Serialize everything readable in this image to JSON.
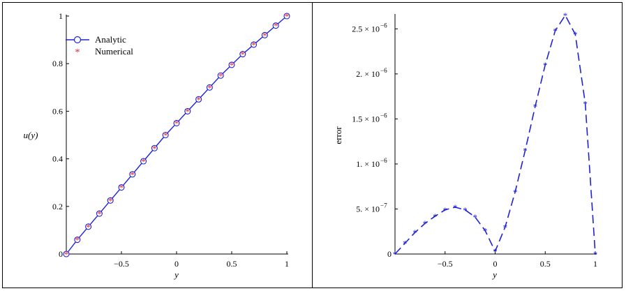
{
  "chart_data": [
    {
      "type": "line",
      "xlabel": "y",
      "ylabel": "u(y)",
      "xlim": [
        -1,
        1
      ],
      "ylim": [
        0,
        1
      ],
      "xticks": [
        "−0.5",
        "0",
        "0.5",
        "1"
      ],
      "yticks": [
        "0",
        "0.2",
        "0.4",
        "0.6",
        "0.8",
        "1"
      ],
      "legend_position": "top-left",
      "series": [
        {
          "name": "Analytic",
          "style": "solid line with circle markers",
          "color": "#1e22d6",
          "x": [
            -1,
            -0.9,
            -0.8,
            -0.7,
            -0.6,
            -0.5,
            -0.4,
            -0.3,
            -0.2,
            -0.1,
            0,
            0.1,
            0.2,
            0.3,
            0.4,
            0.5,
            0.6,
            0.7,
            0.8,
            0.9,
            1
          ],
          "y": [
            0,
            0.06,
            0.115,
            0.17,
            0.225,
            0.28,
            0.335,
            0.39,
            0.445,
            0.5,
            0.55,
            0.6,
            0.65,
            0.7,
            0.75,
            0.795,
            0.84,
            0.88,
            0.92,
            0.96,
            1
          ]
        },
        {
          "name": "Numerical",
          "style": "star markers",
          "color": "#e0202a",
          "x": [
            -1,
            -0.9,
            -0.8,
            -0.7,
            -0.6,
            -0.5,
            -0.4,
            -0.3,
            -0.2,
            -0.1,
            0,
            0.1,
            0.2,
            0.3,
            0.4,
            0.5,
            0.6,
            0.7,
            0.8,
            0.9,
            1
          ],
          "y": [
            0,
            0.06,
            0.115,
            0.17,
            0.225,
            0.28,
            0.335,
            0.39,
            0.445,
            0.5,
            0.55,
            0.6,
            0.65,
            0.7,
            0.75,
            0.795,
            0.84,
            0.88,
            0.92,
            0.96,
            1
          ]
        }
      ]
    },
    {
      "type": "line",
      "xlabel": "y",
      "ylabel": "error",
      "xlim": [
        -1,
        1
      ],
      "ylim": [
        0,
        2.65e-06
      ],
      "xticks": [
        "−0.5",
        "0",
        "0.5",
        "1"
      ],
      "yticks": [
        {
          "value": 0,
          "mantissa": "0",
          "exponent": ""
        },
        {
          "value": 5e-07,
          "mantissa": "5. × 10",
          "exponent": "−7"
        },
        {
          "value": 1e-06,
          "mantissa": "1. × 10",
          "exponent": "−6"
        },
        {
          "value": 1.5e-06,
          "mantissa": "1.5 × 10",
          "exponent": "−6"
        },
        {
          "value": 2e-06,
          "mantissa": "2. × 10",
          "exponent": "−6"
        },
        {
          "value": 2.5e-06,
          "mantissa": "2.5 × 10",
          "exponent": "−6"
        }
      ],
      "series": [
        {
          "style": "dashed line with star markers",
          "color": "#1e22d6",
          "x": [
            -1,
            -0.9,
            -0.8,
            -0.7,
            -0.6,
            -0.5,
            -0.4,
            -0.3,
            -0.2,
            -0.1,
            0,
            0.1,
            0.2,
            0.3,
            0.4,
            0.5,
            0.6,
            0.7,
            0.8,
            0.9,
            1
          ],
          "y": [
            0,
            1.2e-07,
            2.4e-07,
            3.4e-07,
            4.2e-07,
            4.9e-07,
            5.2e-07,
            4.9e-07,
            4.1e-07,
            2.6e-07,
            3e-08,
            3e-07,
            6.9e-07,
            1.15e-06,
            1.64e-06,
            2.1e-06,
            2.48e-06,
            2.65e-06,
            2.44e-06,
            1.67e-06,
            0
          ]
        }
      ]
    }
  ]
}
